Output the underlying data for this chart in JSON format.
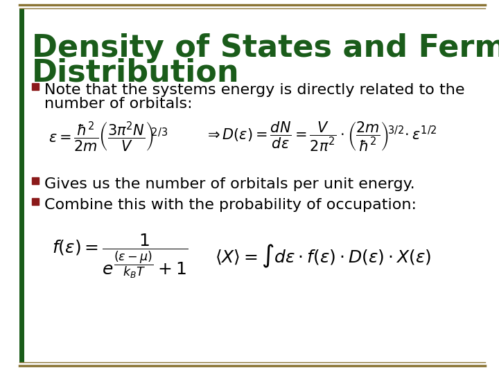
{
  "title_line1": "Density of States and Fermi-Dirac",
  "title_line2": "Distribution",
  "title_color": "#1a5c1a",
  "title_fontsize": 32,
  "background_color": "#ffffff",
  "border_color": "#8B7536",
  "bullet_color": "#8B1A1A",
  "bullet1_line1": "Note that the systems energy is directly related to the",
  "bullet1_line2": "number of orbitals:",
  "bullet2_text": "Gives us the number of orbitals per unit energy.",
  "bullet3_text": "Combine this with the probability of occupation:",
  "text_fontsize": 16,
  "eq_fontsize": 15,
  "eq2_fontsize": 18
}
